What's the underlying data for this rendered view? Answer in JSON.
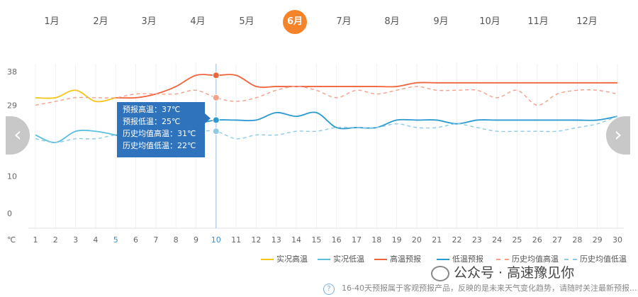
{
  "months": [
    "1月",
    "2月",
    "3月",
    "4月",
    "5月",
    "6月",
    "7月",
    "8月",
    "9月",
    "10月",
    "11月",
    "12月"
  ],
  "active_month_index": 5,
  "tooltip": {
    "forecast_high": "预报高温：37℃",
    "forecast_low": "预报低温：25℃",
    "hist_high": "历史均值高温：31℃",
    "hist_low": "历史均值低温：22℃"
  },
  "nav": {
    "prev": "‹",
    "next": "›"
  },
  "legend": [
    {
      "label": "实况高温",
      "color": "#f5c518",
      "dashed": false
    },
    {
      "label": "实况低温",
      "color": "#5bc0de",
      "dashed": false
    },
    {
      "label": "高温预报",
      "color": "#f0643c",
      "dashed": false
    },
    {
      "label": "低温预报",
      "color": "#2b9ad1",
      "dashed": false
    },
    {
      "label": "历史均值高温",
      "color": "#f4a08a",
      "dashed": true
    },
    {
      "label": "历史均值低温",
      "color": "#8ccbe6",
      "dashed": true
    }
  ],
  "watermark": "公众号 · 高速豫见你",
  "note": "16-40天预报属于客观预报产品，反映的是未来天气变化趋势，请随时关注最新预报......",
  "note_icon": "?",
  "chart_data": {
    "type": "line",
    "x": [
      1,
      2,
      3,
      4,
      5,
      6,
      7,
      8,
      9,
      10,
      11,
      12,
      13,
      14,
      15,
      16,
      17,
      18,
      19,
      20,
      21,
      22,
      23,
      24,
      25,
      26,
      27,
      28,
      29,
      30
    ],
    "y_ticks": [
      0,
      10,
      19,
      29,
      38
    ],
    "y_unit": "℃",
    "highlight_x": 10,
    "series": [
      {
        "name": "实况高温",
        "color": "#f5c518",
        "dashed": false,
        "points": [
          [
            1,
            31
          ],
          [
            2,
            31
          ],
          [
            3,
            33
          ],
          [
            4,
            30
          ],
          [
            5,
            31
          ]
        ]
      },
      {
        "name": "实况低温",
        "color": "#5bc0de",
        "dashed": false,
        "points": [
          [
            1,
            21
          ],
          [
            2,
            19
          ],
          [
            3,
            22
          ],
          [
            4,
            22
          ],
          [
            5,
            21
          ]
        ]
      },
      {
        "name": "高温预报",
        "color": "#f0643c",
        "dashed": false,
        "points": [
          [
            5,
            31
          ],
          [
            6,
            31
          ],
          [
            7,
            32
          ],
          [
            8,
            34
          ],
          [
            9,
            37
          ],
          [
            10,
            37
          ],
          [
            11,
            37
          ],
          [
            12,
            34
          ],
          [
            13,
            34
          ],
          [
            14,
            34
          ],
          [
            15,
            34
          ],
          [
            16,
            34
          ],
          [
            17,
            34
          ],
          [
            18,
            34
          ],
          [
            19,
            34
          ],
          [
            20,
            35
          ],
          [
            21,
            35
          ],
          [
            22,
            35
          ],
          [
            23,
            35
          ],
          [
            24,
            35
          ],
          [
            25,
            35
          ],
          [
            26,
            35
          ],
          [
            27,
            35
          ],
          [
            28,
            35
          ],
          [
            29,
            35
          ],
          [
            30,
            35
          ]
        ]
      },
      {
        "name": "低温预报",
        "color": "#2b9ad1",
        "dashed": false,
        "points": [
          [
            5,
            21
          ],
          [
            6,
            20
          ],
          [
            7,
            21
          ],
          [
            8,
            23
          ],
          [
            9,
            24
          ],
          [
            10,
            25
          ],
          [
            11,
            25
          ],
          [
            12,
            25
          ],
          [
            13,
            27
          ],
          [
            14,
            26
          ],
          [
            15,
            27
          ],
          [
            16,
            23
          ],
          [
            17,
            23
          ],
          [
            18,
            23
          ],
          [
            19,
            25
          ],
          [
            20,
            25
          ],
          [
            21,
            25
          ],
          [
            22,
            24
          ],
          [
            23,
            25
          ],
          [
            24,
            25
          ],
          [
            25,
            25
          ],
          [
            26,
            25
          ],
          [
            27,
            25
          ],
          [
            28,
            25
          ],
          [
            29,
            25
          ],
          [
            30,
            26
          ]
        ]
      },
      {
        "name": "历史均值高温",
        "color": "#f4a08a",
        "dashed": true,
        "points": [
          [
            1,
            29
          ],
          [
            2,
            30
          ],
          [
            3,
            31
          ],
          [
            4,
            31
          ],
          [
            5,
            31
          ],
          [
            6,
            32
          ],
          [
            7,
            32
          ],
          [
            8,
            32
          ],
          [
            9,
            33
          ],
          [
            10,
            31
          ],
          [
            11,
            30
          ],
          [
            12,
            31
          ],
          [
            13,
            33
          ],
          [
            14,
            34
          ],
          [
            15,
            33
          ],
          [
            16,
            31
          ],
          [
            17,
            33
          ],
          [
            18,
            32
          ],
          [
            19,
            33
          ],
          [
            20,
            34
          ],
          [
            21,
            33
          ],
          [
            22,
            33
          ],
          [
            23,
            33
          ],
          [
            24,
            31
          ],
          [
            25,
            33
          ],
          [
            26,
            29
          ],
          [
            27,
            32
          ],
          [
            28,
            33
          ],
          [
            29,
            33
          ],
          [
            30,
            32
          ]
        ]
      },
      {
        "name": "历史均值低温",
        "color": "#8ccbe6",
        "dashed": true,
        "points": [
          [
            1,
            20
          ],
          [
            2,
            19
          ],
          [
            3,
            20
          ],
          [
            4,
            20
          ],
          [
            5,
            21
          ],
          [
            6,
            21
          ],
          [
            7,
            22
          ],
          [
            8,
            22
          ],
          [
            9,
            22
          ],
          [
            10,
            22
          ],
          [
            11,
            20
          ],
          [
            12,
            21
          ],
          [
            13,
            21
          ],
          [
            14,
            22
          ],
          [
            15,
            22
          ],
          [
            16,
            23
          ],
          [
            17,
            23
          ],
          [
            18,
            23
          ],
          [
            19,
            24
          ],
          [
            20,
            23
          ],
          [
            21,
            23
          ],
          [
            22,
            24
          ],
          [
            23,
            23
          ],
          [
            24,
            22
          ],
          [
            25,
            22
          ],
          [
            26,
            22
          ],
          [
            27,
            22
          ],
          [
            28,
            23
          ],
          [
            29,
            24
          ],
          [
            30,
            26
          ]
        ]
      }
    ]
  }
}
